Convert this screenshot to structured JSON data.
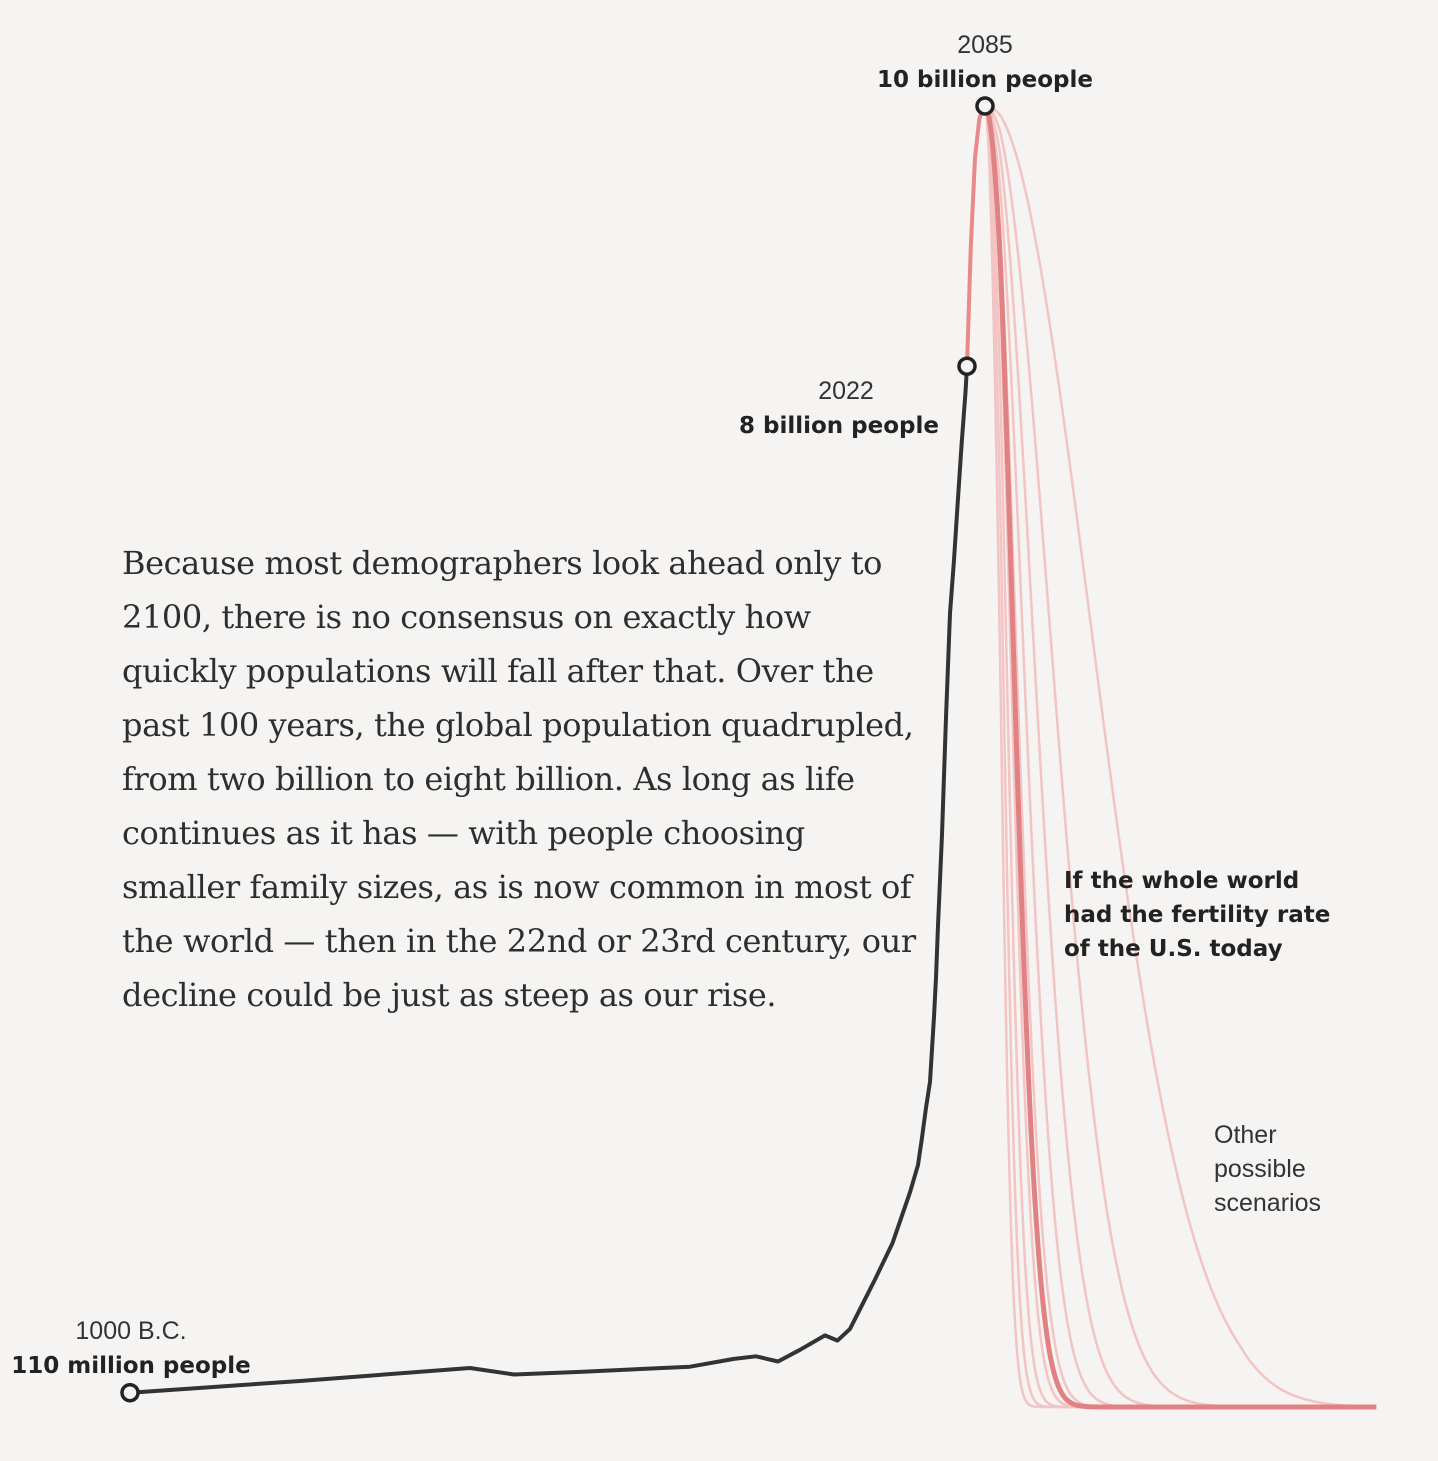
{
  "chart_data": {
    "type": "line",
    "title": "",
    "xlabel": "",
    "ylabel": "",
    "grid": false,
    "x_axis_unit": "year (negative = B.C.)",
    "y_axis_unit": "billion people",
    "historical": {
      "name": "",
      "color": "#333333",
      "points": [
        [
          -1000,
          0.11
        ],
        [
          -500,
          0.2
        ],
        [
          0,
          0.3
        ],
        [
          200,
          0.25
        ],
        [
          500,
          0.27
        ],
        [
          1000,
          0.31
        ],
        [
          1200,
          0.37
        ],
        [
          1300,
          0.39
        ],
        [
          1350,
          0.37
        ],
        [
          1400,
          0.35
        ],
        [
          1500,
          0.44
        ],
        [
          1600,
          0.55
        ],
        [
          1650,
          0.51
        ],
        [
          1700,
          0.6
        ],
        [
          1750,
          0.79
        ],
        [
          1800,
          0.98
        ],
        [
          1850,
          1.26
        ],
        [
          1900,
          1.65
        ],
        [
          1920,
          1.86
        ],
        [
          1930,
          2.07
        ],
        [
          1940,
          2.3
        ],
        [
          1950,
          2.5
        ],
        [
          1955,
          2.75
        ],
        [
          1960,
          3.0
        ],
        [
          1965,
          3.3
        ],
        [
          1970,
          3.7
        ],
        [
          1975,
          4.05
        ],
        [
          1980,
          4.4
        ],
        [
          1985,
          4.85
        ],
        [
          1990,
          5.3
        ],
        [
          1995,
          5.7
        ],
        [
          2000,
          6.1
        ],
        [
          2005,
          6.5
        ],
        [
          2010,
          6.95
        ],
        [
          2015,
          7.4
        ],
        [
          2020,
          7.8
        ],
        [
          2022,
          8.0
        ]
      ]
    },
    "projection": {
      "name": "",
      "color": "#e8898a",
      "points": [
        [
          2022,
          8.0
        ],
        [
          2035,
          8.9
        ],
        [
          2050,
          9.6
        ],
        [
          2065,
          9.9
        ],
        [
          2080,
          10.0
        ],
        [
          2085,
          10.0
        ]
      ]
    },
    "decline_start_year": 2085,
    "decline_peak_value": 10.0,
    "decline_end_year": 2600,
    "scenarios": [
      {
        "half_life_years": 150,
        "color": "#f2c4c3",
        "highlight": false
      },
      {
        "half_life_years": 90,
        "color": "#f2c4c3",
        "highlight": false
      },
      {
        "half_life_years": 65,
        "color": "#f2c4c3",
        "highlight": false
      },
      {
        "half_life_years": 50,
        "color": "#f2c4c3",
        "highlight": false
      },
      {
        "half_life_years": 40,
        "color": "#f2c4c3",
        "highlight": false
      },
      {
        "half_life_years": 32,
        "color": "#f2c4c3",
        "highlight": false
      },
      {
        "half_life_years": 26,
        "color": "#f2c4c3",
        "highlight": false
      },
      {
        "half_life_years": 21,
        "color": "#f2c4c3",
        "highlight": false
      },
      {
        "half_life_years": 17,
        "color": "#f2c4c3",
        "highlight": false
      },
      {
        "half_life_years": 36,
        "color": "#e08283",
        "highlight": true
      }
    ],
    "annotations": [
      {
        "year_label": "2085",
        "value_label": "10 billion people",
        "x": 2085,
        "y": 10.0,
        "align": "center"
      },
      {
        "year_label": "2022",
        "value_label": "8 billion people",
        "x": 2022,
        "y": 8.0,
        "align": "right"
      },
      {
        "year_label": "1000 B.C.",
        "value_label": "110 million people",
        "x": -1000,
        "y": 0.11,
        "align": "center"
      }
    ],
    "scenario_label": [
      "If the whole world",
      "had the fertility rate",
      "of the U.S. today"
    ],
    "other_label": [
      "Other",
      "possible",
      "scenarios"
    ]
  },
  "body_text": "Because most demographers look ahead only to 2100, there is no consensus on exactly how quickly populations will fall after that. Over the past 100 years, the global population quadrupled, from two billion to eight billion. As long as life continues as it has — with people choosing smaller family sizes, as is now common in most of the world — then in the 22nd or 23rd century, our decline could be just as steep as our rise."
}
